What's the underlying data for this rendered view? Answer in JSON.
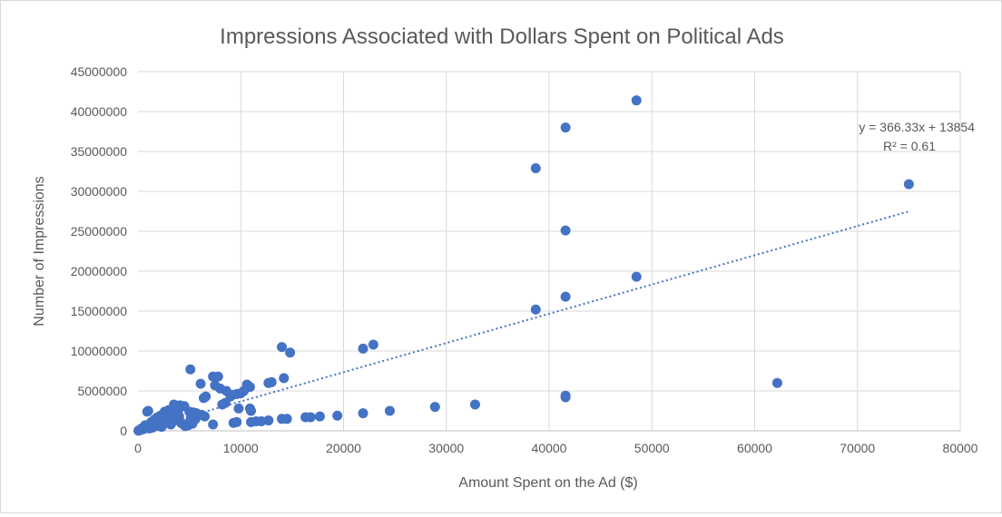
{
  "chart_data": {
    "type": "scatter",
    "title": "Impressions Associated with Dollars Spent on Political Ads",
    "xlabel": "Amount Spent on the Ad ($)",
    "ylabel": "Number of Impressions",
    "xlim": [
      0,
      80000
    ],
    "ylim": [
      0,
      45000000
    ],
    "x_ticks": [
      "0",
      "10000",
      "20000",
      "30000",
      "40000",
      "50000",
      "60000",
      "70000",
      "80000"
    ],
    "y_ticks": [
      "0",
      "5000000",
      "10000000",
      "15000000",
      "20000000",
      "25000000",
      "30000000",
      "35000000",
      "40000000",
      "45000000"
    ],
    "grid": true,
    "legend": "none",
    "marker_color": "#4472C4",
    "trendline": {
      "type": "linear",
      "slope": 366.33,
      "intercept": 13854,
      "x_range": [
        0,
        75000
      ],
      "style": "dotted",
      "color": "#4472C4",
      "equation": "y = 366.33x + 13854",
      "r_squared": "R² = 0.61"
    },
    "points": [
      [
        48500,
        41400000
      ],
      [
        41600,
        38000000
      ],
      [
        38700,
        32900000
      ],
      [
        75000,
        30900000
      ],
      [
        41600,
        25100000
      ],
      [
        48500,
        19300000
      ],
      [
        41600,
        16800000
      ],
      [
        38700,
        15200000
      ],
      [
        22900,
        10800000
      ],
      [
        21900,
        10300000
      ],
      [
        14000,
        10500000
      ],
      [
        14800,
        9800000
      ],
      [
        5100,
        7700000
      ],
      [
        7300,
        6800000
      ],
      [
        7800,
        6800000
      ],
      [
        6100,
        5900000
      ],
      [
        10600,
        5800000
      ],
      [
        10900,
        5500000
      ],
      [
        12700,
        6000000
      ],
      [
        13000,
        6100000
      ],
      [
        14200,
        6600000
      ],
      [
        7500,
        5700000
      ],
      [
        8000,
        5300000
      ],
      [
        8600,
        5000000
      ],
      [
        9200,
        4500000
      ],
      [
        9600,
        4600000
      ],
      [
        10000,
        4700000
      ],
      [
        10300,
        5000000
      ],
      [
        9000,
        4300000
      ],
      [
        8500,
        3500000
      ],
      [
        8200,
        3300000
      ],
      [
        6600,
        4300000
      ],
      [
        6400,
        4100000
      ],
      [
        41600,
        4400000
      ],
      [
        41600,
        4200000
      ],
      [
        62200,
        6000000
      ],
      [
        32800,
        3300000
      ],
      [
        28900,
        3000000
      ],
      [
        24500,
        2500000
      ],
      [
        21900,
        2200000
      ],
      [
        19400,
        1900000
      ],
      [
        17700,
        1800000
      ],
      [
        16800,
        1700000
      ],
      [
        16300,
        1700000
      ],
      [
        14500,
        1500000
      ],
      [
        14000,
        1500000
      ],
      [
        12700,
        1300000
      ],
      [
        12000,
        1200000
      ],
      [
        11500,
        1200000
      ],
      [
        11000,
        1100000
      ],
      [
        11000,
        2500000
      ],
      [
        10900,
        2800000
      ],
      [
        9600,
        1100000
      ],
      [
        9300,
        1000000
      ],
      [
        9800,
        2800000
      ],
      [
        7300,
        800000
      ],
      [
        6500,
        1800000
      ],
      [
        6200,
        2000000
      ],
      [
        5700,
        2200000
      ],
      [
        5400,
        2300000
      ],
      [
        5000,
        2400000
      ],
      [
        5600,
        1500000
      ],
      [
        5300,
        900000
      ],
      [
        4900,
        700000
      ],
      [
        4500,
        3100000
      ],
      [
        4100,
        3200000
      ],
      [
        3500,
        3300000
      ],
      [
        3800,
        3000000
      ],
      [
        3000,
        2600000
      ],
      [
        2800,
        2300000
      ],
      [
        2500,
        2100000
      ],
      [
        2200,
        1900000
      ],
      [
        1900,
        1700000
      ],
      [
        1600,
        1400000
      ],
      [
        1300,
        1100000
      ],
      [
        1000,
        2500000
      ],
      [
        900,
        2400000
      ],
      [
        1200,
        800000
      ],
      [
        800,
        600000
      ],
      [
        600,
        400000
      ],
      [
        400,
        250000
      ],
      [
        200,
        100000
      ],
      [
        100,
        50000
      ],
      [
        300,
        150000
      ],
      [
        700,
        700000
      ],
      [
        1500,
        900000
      ],
      [
        2000,
        1200000
      ],
      [
        2400,
        1500000
      ],
      [
        2700,
        1000000
      ],
      [
        3200,
        800000
      ],
      [
        3600,
        1400000
      ],
      [
        4000,
        1800000
      ],
      [
        4300,
        900000
      ],
      [
        3300,
        1900000
      ],
      [
        2900,
        1600000
      ],
      [
        3900,
        2500000
      ],
      [
        4600,
        600000
      ],
      [
        5100,
        1300000
      ],
      [
        1700,
        600000
      ],
      [
        1100,
        300000
      ],
      [
        2300,
        500000
      ],
      [
        2600,
        2400000
      ],
      [
        3100,
        2200000
      ],
      [
        3400,
        1200000
      ],
      [
        500,
        200000
      ],
      [
        1400,
        400000
      ],
      [
        2100,
        700000
      ],
      [
        4200,
        1000000
      ],
      [
        50,
        20000
      ],
      [
        150,
        80000
      ],
      [
        250,
        120000
      ],
      [
        350,
        300000
      ]
    ]
  }
}
